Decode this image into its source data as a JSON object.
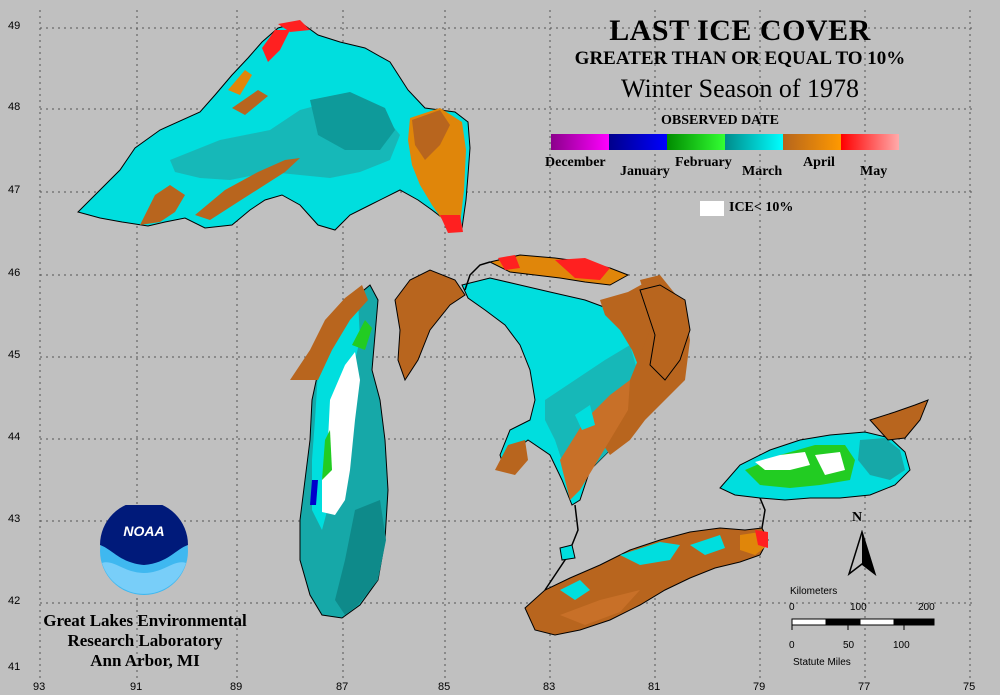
{
  "title": {
    "line1": "LAST ICE COVER",
    "line2": "GREATER THAN OR EQUAL TO 10%",
    "line3": "Winter Season of 1978"
  },
  "legend": {
    "heading": "OBSERVED DATE",
    "months": [
      "December",
      "January",
      "February",
      "March",
      "April",
      "May"
    ],
    "month_colors": [
      [
        "#8b008b",
        "#ff00ff"
      ],
      [
        "#00008b",
        "#0000ff"
      ],
      [
        "#008b00",
        "#33ff33"
      ],
      [
        "#008b8b",
        "#00ffff"
      ],
      [
        "#b5651d",
        "#ff9900"
      ],
      [
        "#ff0000",
        "#ffaaaa"
      ]
    ],
    "ice_label": "ICE< 10%",
    "ice_color": "#ffffff"
  },
  "lab": {
    "line1": "Great Lakes Environmental",
    "line2": "Research Laboratory",
    "line3": "Ann Arbor, MI"
  },
  "logo": {
    "text": "NOAA"
  },
  "axes": {
    "lat_labels": [
      "49",
      "48",
      "47",
      "46",
      "45",
      "44",
      "43",
      "42",
      "41"
    ],
    "lon_labels": [
      "93",
      "91",
      "89",
      "87",
      "85",
      "83",
      "81",
      "79",
      "77",
      "75"
    ]
  },
  "north_arrow": {
    "label": "N"
  },
  "scale": {
    "km_title": "Kilometers",
    "km_ticks": [
      "0",
      "100",
      "200"
    ],
    "mi_ticks": [
      "0",
      "50",
      "100"
    ],
    "mi_title": "Statute Miles"
  },
  "colors": {
    "background": "#c0c0c0",
    "cyan": "#00dede",
    "teal": "#16a8a8",
    "dark_teal": "#0e8a8a",
    "april_brown": "#b8651e",
    "april_orange": "#e0860a",
    "may_red": "#ff2020",
    "green": "#22cc22",
    "gridline": "#5a5a5a"
  }
}
